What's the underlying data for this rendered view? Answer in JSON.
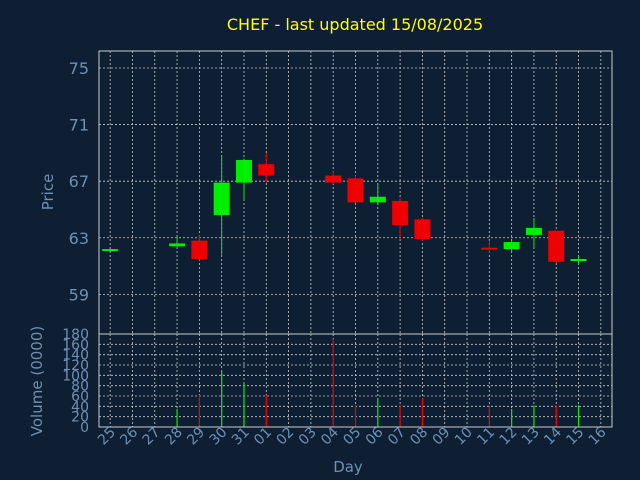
{
  "colors": {
    "background": "#0f1f33",
    "title": "#ffff00",
    "axis_text": "#6f8fb3",
    "grid": "#c8c8c8",
    "up": "#00ee00",
    "down": "#ee0000"
  },
  "chart_data": {
    "type": "candlestick",
    "title": "CHEF - last updated 15/08/2025",
    "xlabel": "Day",
    "price_panel": {
      "ylabel": "Price",
      "ylim": [
        56.2,
        76.2
      ],
      "yticks": [
        59,
        63,
        67,
        71,
        75
      ],
      "grid": true
    },
    "volume_panel": {
      "ylabel": "Volume (0000)",
      "ylim": [
        0,
        180
      ],
      "yticks": [
        0,
        20,
        40,
        60,
        80,
        100,
        120,
        140,
        160,
        180
      ],
      "grid": true
    },
    "x_ticks": [
      "25",
      "26",
      "27",
      "28",
      "29",
      "30",
      "31",
      "01",
      "02",
      "03",
      "04",
      "05",
      "06",
      "07",
      "08",
      "09",
      "10",
      "11",
      "12",
      "13",
      "14",
      "15",
      "16"
    ],
    "candles": [
      {
        "x": 0,
        "open": 62.1,
        "high": 62.2,
        "low": 62.0,
        "close": 62.2,
        "volume": 0
      },
      {
        "x": 3,
        "open": 62.4,
        "high": 63.1,
        "low": 62.3,
        "close": 62.6,
        "volume": 35
      },
      {
        "x": 4,
        "open": 62.8,
        "high": 63.2,
        "low": 61.4,
        "close": 61.5,
        "volume": 62
      },
      {
        "x": 5,
        "open": 64.6,
        "high": 68.8,
        "low": 61.8,
        "close": 66.9,
        "volume": 110
      },
      {
        "x": 6,
        "open": 66.9,
        "high": 68.6,
        "low": 65.7,
        "close": 68.5,
        "volume": 85
      },
      {
        "x": 7,
        "open": 68.2,
        "high": 69.0,
        "low": 66.9,
        "close": 67.4,
        "volume": 62
      },
      {
        "x": 10,
        "open": 67.4,
        "high": 67.7,
        "low": 66.8,
        "close": 66.9,
        "volume": 170
      },
      {
        "x": 11,
        "open": 67.2,
        "high": 67.4,
        "low": 65.5,
        "close": 65.5,
        "volume": 42
      },
      {
        "x": 12,
        "open": 65.5,
        "high": 66.8,
        "low": 65.3,
        "close": 65.9,
        "volume": 56
      },
      {
        "x": 13,
        "open": 65.6,
        "high": 65.8,
        "low": 62.9,
        "close": 63.9,
        "volume": 42
      },
      {
        "x": 14,
        "open": 64.3,
        "high": 64.4,
        "low": 62.8,
        "close": 62.9,
        "volume": 56
      },
      {
        "x": 17,
        "open": 62.3,
        "high": 62.8,
        "low": 61.9,
        "close": 62.2,
        "volume": 42
      },
      {
        "x": 18,
        "open": 62.2,
        "high": 62.8,
        "low": 62.0,
        "close": 62.7,
        "volume": 35
      },
      {
        "x": 19,
        "open": 63.2,
        "high": 64.4,
        "low": 62.3,
        "close": 63.7,
        "volume": 42
      },
      {
        "x": 20,
        "open": 63.5,
        "high": 63.5,
        "low": 61.2,
        "close": 61.3,
        "volume": 42
      },
      {
        "x": 21,
        "open": 61.4,
        "high": 61.7,
        "low": 61.1,
        "close": 61.5,
        "volume": 42
      }
    ]
  }
}
